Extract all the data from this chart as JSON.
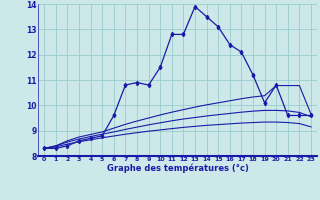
{
  "xlabel": "Graphe des températures (°c)",
  "bg_color": "#cce8e8",
  "line_color": "#1a1aaa",
  "grid_color": "#99cccc",
  "x": [
    0,
    1,
    2,
    3,
    4,
    5,
    6,
    7,
    8,
    9,
    10,
    11,
    12,
    13,
    14,
    15,
    16,
    17,
    18,
    19,
    20,
    21,
    22,
    23
  ],
  "y_main": [
    8.3,
    8.3,
    8.4,
    8.6,
    8.7,
    8.8,
    9.6,
    10.8,
    10.9,
    10.8,
    11.5,
    12.8,
    12.8,
    13.9,
    13.5,
    13.1,
    12.4,
    12.1,
    11.2,
    10.1,
    10.8,
    9.6,
    9.6,
    9.6
  ],
  "y_line1": [
    8.3,
    8.4,
    8.6,
    8.75,
    8.85,
    8.95,
    9.1,
    9.25,
    9.38,
    9.5,
    9.62,
    9.73,
    9.83,
    9.93,
    10.02,
    10.1,
    10.18,
    10.26,
    10.33,
    10.38,
    10.78,
    10.78,
    10.78,
    9.65
  ],
  "y_line2": [
    8.3,
    8.4,
    8.55,
    8.67,
    8.77,
    8.86,
    8.95,
    9.05,
    9.14,
    9.23,
    9.31,
    9.39,
    9.46,
    9.52,
    9.58,
    9.63,
    9.68,
    9.73,
    9.77,
    9.8,
    9.8,
    9.78,
    9.72,
    9.55
  ],
  "y_line3": [
    8.3,
    8.36,
    8.47,
    8.56,
    8.64,
    8.72,
    8.79,
    8.86,
    8.92,
    8.98,
    9.03,
    9.08,
    9.13,
    9.17,
    9.21,
    9.24,
    9.27,
    9.3,
    9.32,
    9.34,
    9.34,
    9.32,
    9.28,
    9.15
  ],
  "ylim": [
    8,
    14
  ],
  "xlim": [
    -0.5,
    23.5
  ],
  "yticks": [
    8,
    9,
    10,
    11,
    12,
    13,
    14
  ],
  "xticks": [
    0,
    1,
    2,
    3,
    4,
    5,
    6,
    7,
    8,
    9,
    10,
    11,
    12,
    13,
    14,
    15,
    16,
    17,
    18,
    19,
    20,
    21,
    22,
    23
  ]
}
